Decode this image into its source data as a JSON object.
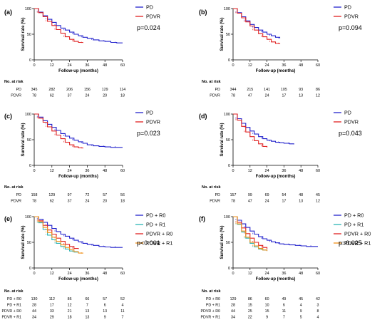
{
  "chart_data": [
    {
      "type": "line",
      "panel_label": "(a)",
      "xlabel": "Follow-up (months)",
      "ylabel": "Survival rate (%)",
      "xlim": [
        0,
        60
      ],
      "ylim": [
        0,
        100
      ],
      "xticks": [
        "0",
        "12",
        "24",
        "36",
        "48",
        "60"
      ],
      "yticks": [
        "0",
        "50",
        "100"
      ],
      "legend_position": "top-right",
      "p_value": "p=0.024",
      "series": [
        {
          "name": "PD",
          "color": "#2222cc",
          "x": [
            0,
            3,
            6,
            9,
            12,
            15,
            18,
            21,
            24,
            27,
            30,
            33,
            36,
            40,
            44,
            48,
            52,
            56,
            60
          ],
          "y": [
            100,
            93,
            86,
            79,
            73,
            67,
            62,
            58,
            54,
            50,
            47,
            44,
            42,
            39,
            37,
            36,
            34,
            33,
            33
          ]
        },
        {
          "name": "PDVR",
          "color": "#e02020",
          "x": [
            0,
            3,
            6,
            9,
            12,
            15,
            18,
            21,
            24,
            27,
            30,
            33
          ],
          "y": [
            100,
            92,
            84,
            75,
            67,
            59,
            52,
            45,
            40,
            36,
            34,
            33
          ]
        }
      ],
      "risk_table": {
        "title": "No. at risk",
        "rows": [
          {
            "label": "PD",
            "values": [
              "345",
              "282",
              "206",
              "156",
              "129",
              "114"
            ]
          },
          {
            "label": "PDVR",
            "values": [
              "78",
              "62",
              "37",
              "24",
              "20",
              "18"
            ]
          }
        ]
      }
    },
    {
      "type": "line",
      "panel_label": "(b)",
      "xlabel": "Follow-up (months)",
      "ylabel": "Survival rate (%)",
      "xlim": [
        0,
        60
      ],
      "ylim": [
        0,
        100
      ],
      "xticks": [
        "0",
        "12",
        "24",
        "36",
        "48",
        "60"
      ],
      "yticks": [
        "0",
        "50",
        "100"
      ],
      "legend_position": "top-right",
      "p_value": "p=0.094",
      "series": [
        {
          "name": "PD",
          "color": "#2222cc",
          "x": [
            0,
            3,
            6,
            9,
            12,
            15,
            18,
            21,
            24,
            27,
            30,
            33
          ],
          "y": [
            100,
            92,
            84,
            76,
            69,
            63,
            58,
            54,
            50,
            47,
            44,
            42
          ]
        },
        {
          "name": "PDVR",
          "color": "#e02020",
          "x": [
            0,
            3,
            6,
            9,
            12,
            15,
            18,
            21,
            24,
            27,
            30,
            33
          ],
          "y": [
            100,
            91,
            82,
            74,
            66,
            58,
            51,
            45,
            40,
            35,
            32,
            31
          ]
        }
      ],
      "risk_table": {
        "title": "No. at risk",
        "rows": [
          {
            "label": "PD",
            "values": [
              "344",
              "215",
              "141",
              "105",
              "93",
              "86"
            ]
          },
          {
            "label": "PDVR",
            "values": [
              "78",
              "47",
              "24",
              "17",
              "13",
              "12"
            ]
          }
        ]
      }
    },
    {
      "type": "line",
      "panel_label": "(c)",
      "xlabel": "Follow-up (months)",
      "ylabel": "Survival rate (%)",
      "xlim": [
        0,
        60
      ],
      "ylim": [
        0,
        100
      ],
      "xticks": [
        "0",
        "12",
        "24",
        "36",
        "48",
        "60"
      ],
      "yticks": [
        "0",
        "50",
        "100"
      ],
      "legend_position": "top-right",
      "p_value": "p=0.023",
      "series": [
        {
          "name": "PD",
          "color": "#2222cc",
          "x": [
            0,
            3,
            6,
            9,
            12,
            15,
            18,
            21,
            24,
            27,
            30,
            33,
            36,
            40,
            44,
            48,
            52,
            56,
            60
          ],
          "y": [
            100,
            94,
            87,
            80,
            74,
            68,
            62,
            57,
            53,
            49,
            46,
            43,
            40,
            38,
            37,
            36,
            35,
            35,
            35
          ]
        },
        {
          "name": "PDVR",
          "color": "#e02020",
          "x": [
            0,
            3,
            6,
            9,
            12,
            15,
            18,
            21,
            24,
            27,
            30,
            33
          ],
          "y": [
            100,
            92,
            84,
            75,
            67,
            59,
            52,
            45,
            40,
            36,
            34,
            33
          ]
        }
      ],
      "risk_table": {
        "title": "No. at risk",
        "rows": [
          {
            "label": "PD",
            "values": [
              "158",
              "129",
              "97",
              "72",
              "57",
              "56"
            ]
          },
          {
            "label": "PDVR",
            "values": [
              "78",
              "62",
              "37",
              "24",
              "20",
              "18"
            ]
          }
        ]
      }
    },
    {
      "type": "line",
      "panel_label": "(d)",
      "xlabel": "Follow-up (months)",
      "ylabel": "Survival rate (%)",
      "xlim": [
        0,
        60
      ],
      "ylim": [
        0,
        100
      ],
      "xticks": [
        "0",
        "12",
        "24",
        "36",
        "48",
        "60"
      ],
      "yticks": [
        "0",
        "50",
        "100"
      ],
      "legend_position": "top-right",
      "p_value": "p=0.043",
      "series": [
        {
          "name": "PD",
          "color": "#2222cc",
          "x": [
            0,
            3,
            6,
            9,
            12,
            15,
            18,
            21,
            24,
            27,
            30,
            33,
            36,
            40,
            43
          ],
          "y": [
            100,
            91,
            82,
            74,
            67,
            61,
            56,
            52,
            49,
            47,
            45,
            44,
            43,
            42,
            41
          ]
        },
        {
          "name": "PDVR",
          "color": "#e02020",
          "x": [
            0,
            3,
            6,
            9,
            12,
            15,
            18,
            21,
            24
          ],
          "y": [
            100,
            88,
            76,
            65,
            56,
            48,
            42,
            37,
            35
          ]
        }
      ],
      "risk_table": {
        "title": "No. at risk",
        "rows": [
          {
            "label": "PD",
            "values": [
              "157",
              "99",
              "69",
              "54",
              "48",
              "45"
            ]
          },
          {
            "label": "PDVR",
            "values": [
              "78",
              "47",
              "24",
              "17",
              "13",
              "12"
            ]
          }
        ]
      }
    },
    {
      "type": "line",
      "panel_label": "(e)",
      "xlabel": "Follow-up (months)",
      "ylabel": "Survival rate (%)",
      "xlim": [
        0,
        60
      ],
      "ylim": [
        0,
        100
      ],
      "xticks": [
        "0",
        "12",
        "24",
        "36",
        "48",
        "60"
      ],
      "yticks": [
        "0",
        "50",
        "100"
      ],
      "legend_position": "top-right",
      "p_value": "p<0.001",
      "series": [
        {
          "name": "PD + R0",
          "color": "#2222cc",
          "x": [
            0,
            3,
            6,
            9,
            12,
            15,
            18,
            21,
            24,
            27,
            30,
            33,
            36,
            40,
            44,
            48,
            52,
            56,
            60
          ],
          "y": [
            100,
            95,
            89,
            83,
            77,
            71,
            66,
            62,
            58,
            54,
            51,
            48,
            46,
            44,
            42,
            41,
            40,
            40,
            40
          ]
        },
        {
          "name": "PD + R1",
          "color": "#2bb5b5",
          "x": [
            0,
            3,
            6,
            9,
            12,
            15,
            18,
            21,
            24,
            27,
            30
          ],
          "y": [
            100,
            88,
            75,
            64,
            55,
            48,
            42,
            37,
            33,
            31,
            30
          ]
        },
        {
          "name": "PDVR + R0",
          "color": "#e02020",
          "x": [
            0,
            3,
            6,
            9,
            12,
            15,
            18,
            21,
            24,
            27,
            30
          ],
          "y": [
            100,
            92,
            83,
            74,
            66,
            58,
            52,
            46,
            42,
            38,
            37
          ]
        },
        {
          "name": "PDVR + R1",
          "color": "#f0901a",
          "x": [
            0,
            3,
            6,
            9,
            12,
            15,
            18,
            21,
            24,
            27,
            30,
            33
          ],
          "y": [
            100,
            90,
            79,
            69,
            60,
            52,
            45,
            40,
            36,
            32,
            29,
            28
          ]
        }
      ],
      "risk_table": {
        "title": "No. at risk",
        "rows": [
          {
            "label": "PD + R0",
            "values": [
              "130",
              "112",
              "86",
              "66",
              "57",
              "52"
            ]
          },
          {
            "label": "PD + R1",
            "values": [
              "28",
              "17",
              "12",
              "7",
              "6",
              "4"
            ]
          },
          {
            "label": "PDVR + R0",
            "values": [
              "44",
              "33",
              "21",
              "13",
              "13",
              "11"
            ]
          },
          {
            "label": "PDVR + R1",
            "values": [
              "34",
              "29",
              "18",
              "13",
              "9",
              "7"
            ]
          }
        ]
      }
    },
    {
      "type": "line",
      "panel_label": "(f)",
      "xlabel": "Follow-up (months)",
      "ylabel": "Survival rate (%)",
      "xlim": [
        0,
        60
      ],
      "ylim": [
        0,
        100
      ],
      "xticks": [
        "0",
        "12",
        "24",
        "36",
        "48",
        "60"
      ],
      "yticks": [
        "0",
        "50",
        "100"
      ],
      "legend_position": "top-right",
      "p_value": "p=0.025",
      "series": [
        {
          "name": "PD + R0",
          "color": "#2222cc",
          "x": [
            0,
            3,
            6,
            9,
            12,
            15,
            18,
            21,
            24,
            27,
            30,
            33,
            36,
            40,
            44,
            48,
            52,
            56,
            60
          ],
          "y": [
            100,
            93,
            86,
            79,
            72,
            66,
            61,
            57,
            54,
            51,
            49,
            47,
            46,
            45,
            44,
            43,
            42,
            42,
            42
          ]
        },
        {
          "name": "PD + R1",
          "color": "#2bb5b5",
          "x": [
            0,
            3,
            6,
            9,
            12,
            15,
            18,
            21,
            24
          ],
          "y": [
            100,
            85,
            70,
            58,
            48,
            41,
            37,
            35,
            34
          ]
        },
        {
          "name": "PDVR + R0",
          "color": "#e02020",
          "x": [
            0,
            3,
            6,
            9,
            12,
            15,
            18,
            21,
            24
          ],
          "y": [
            100,
            89,
            78,
            67,
            58,
            50,
            44,
            40,
            37
          ]
        },
        {
          "name": "PDVR + R1",
          "color": "#f0901a",
          "x": [
            0,
            3,
            6,
            9,
            12,
            15,
            18,
            21,
            24
          ],
          "y": [
            100,
            86,
            72,
            60,
            50,
            43,
            38,
            35,
            33
          ]
        }
      ],
      "risk_table": {
        "title": "No. at risk",
        "rows": [
          {
            "label": "PD + R0",
            "values": [
              "129",
              "86",
              "60",
              "49",
              "45",
              "42"
            ]
          },
          {
            "label": "PD + R1",
            "values": [
              "28",
              "15",
              "10",
              "6",
              "4",
              "3"
            ]
          },
          {
            "label": "PDVR + R0",
            "values": [
              "44",
              "25",
              "15",
              "11",
              "9",
              "8"
            ]
          },
          {
            "label": "PDVR + R1",
            "values": [
              "34",
              "22",
              "9",
              "7",
              "5",
              "4"
            ]
          }
        ]
      }
    }
  ]
}
